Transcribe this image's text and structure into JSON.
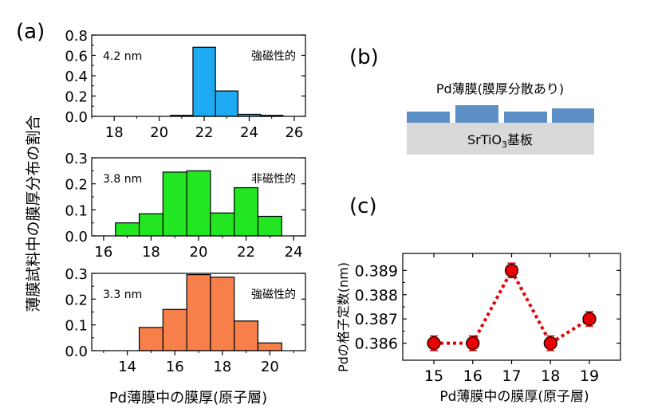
{
  "panel_labels": {
    "a": "(a)",
    "b": "(b)",
    "c": "(c)"
  },
  "colors": {
    "hist_1": "#1eaaf0",
    "hist_2": "#22e622",
    "hist_3": "#f7804a",
    "film": "#5b8fc6",
    "substrate": "#d9d9d9",
    "marker": "#e60000"
  },
  "panel_a": {
    "ylabel": "薄膜試料中の膜厚分布の割合",
    "xlabel": "Pd薄膜中の膜厚(原子層)"
  },
  "panel_b": {
    "film_label": "Pd薄膜(膜厚分散あり)",
    "substrate_label_pre": "SrTiO",
    "substrate_label_sub": "3",
    "substrate_label_post": "基板"
  },
  "chart_data": [
    {
      "type": "bar",
      "panel": "a-1",
      "annotation_left": "4.2 nm",
      "annotation_right": "強磁性的",
      "bins": [
        20,
        21,
        22,
        23,
        24,
        25
      ],
      "values": [
        0.0,
        0.01,
        0.68,
        0.25,
        0.02,
        0.01
      ],
      "xlim": [
        17,
        26.5
      ],
      "ylim": [
        0,
        0.8
      ],
      "xticks": [
        18,
        20,
        22,
        24,
        26
      ],
      "yticks": [
        0.0,
        0.2,
        0.4,
        0.6,
        0.8
      ],
      "ytick_labels": [
        "0.0",
        "0.2",
        "0.4",
        "0.6",
        "0.8"
      ]
    },
    {
      "type": "bar",
      "panel": "a-2",
      "annotation_left": "3.8 nm",
      "annotation_right": "非磁性的",
      "bins": [
        16,
        17,
        18,
        19,
        20,
        21,
        22,
        23
      ],
      "values": [
        0.0,
        0.05,
        0.085,
        0.245,
        0.25,
        0.088,
        0.185,
        0.075
      ],
      "xlim": [
        15.5,
        24.5
      ],
      "ylim": [
        0,
        0.3
      ],
      "xticks": [
        16,
        18,
        20,
        22,
        24
      ],
      "yticks": [
        0.0,
        0.1,
        0.2,
        0.3
      ],
      "ytick_labels": [
        "0.0",
        "0.1",
        "0.2",
        "0.3"
      ]
    },
    {
      "type": "bar",
      "panel": "a-3",
      "annotation_left": "3.3 nm",
      "annotation_right": "強磁性的",
      "bins": [
        14,
        15,
        16,
        17,
        18,
        19,
        20
      ],
      "values": [
        0.0,
        0.09,
        0.16,
        0.295,
        0.285,
        0.115,
        0.03
      ],
      "xlim": [
        12.5,
        21.5
      ],
      "ylim": [
        0,
        0.3
      ],
      "xticks": [
        14,
        16,
        18,
        20
      ],
      "yticks": [
        0.0,
        0.1,
        0.2,
        0.3
      ],
      "ytick_labels": [
        "0.0",
        "0.1",
        "0.2",
        "0.3"
      ]
    },
    {
      "type": "scatter",
      "panel": "c",
      "xlabel": "Pd薄膜中の膜厚(原子層)",
      "ylabel": "Pdの格子定数(nm)",
      "x": [
        15,
        16,
        17,
        18,
        19
      ],
      "y": [
        0.386,
        0.386,
        0.389,
        0.386,
        0.387
      ],
      "yerr": [
        0.0003,
        0.0003,
        0.0003,
        0.0003,
        0.0003
      ],
      "connector": "dotted",
      "xlim": [
        14.2,
        19.8
      ],
      "ylim": [
        0.3853,
        0.3897
      ],
      "xticks": [
        15,
        16,
        17,
        18,
        19
      ],
      "yticks": [
        0.386,
        0.387,
        0.388,
        0.389
      ],
      "ytick_labels": [
        "0.386",
        "0.387",
        "0.388",
        "0.389"
      ]
    }
  ]
}
